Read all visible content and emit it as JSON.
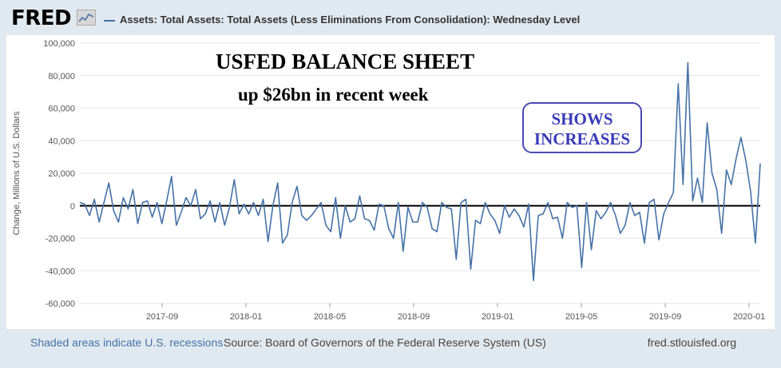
{
  "brand": {
    "logo": "FRED",
    "logo_icon": "fred-graph-icon"
  },
  "header": {
    "series_title": "Assets: Total Assets: Total Assets (Less Eliminations From Consolidation): Wednesday Level"
  },
  "annotations": {
    "title": "USFED BALANCE SHEET",
    "subtitle": "up $26bn in recent week",
    "box_line1": "SHOWS",
    "box_line2": "INCREASES"
  },
  "footer": {
    "recessions": "Shaded areas indicate U.S. recessions",
    "source": "Source: Board of Governors of the Federal Reserve System (US)",
    "site": "fred.stlouisfed.org"
  },
  "chart_data": {
    "type": "line",
    "ylabel": "Change, Millions of U.S. Dollars",
    "ylim": [
      -60000,
      100000
    ],
    "yticks": [
      -60000,
      -40000,
      -20000,
      0,
      20000,
      40000,
      60000,
      80000,
      100000
    ],
    "ytick_labels": [
      "-60,000",
      "-40,000",
      "-20,000",
      "0",
      "20,000",
      "40,000",
      "60,000",
      "80,000",
      "100,000"
    ],
    "xtick_labels": [
      "2017-09",
      "2018-01",
      "2018-05",
      "2018-09",
      "2019-01",
      "2019-05",
      "2019-09",
      "2020-01"
    ],
    "line_color": "#4572a7",
    "zero_line": true,
    "grid": true,
    "series": [
      {
        "values": [
          2000,
          1000,
          -6000,
          4000,
          -10000,
          2000,
          14000,
          -3000,
          -10000,
          5000,
          -2000,
          10000,
          -11000,
          2000,
          3000,
          -7000,
          2000,
          -11000,
          3000,
          18000,
          -12000,
          -4000,
          5000,
          0,
          10000,
          -8000,
          -5000,
          3000,
          -10000,
          2000,
          -12000,
          -1000,
          16000,
          -5000,
          1000,
          -5000,
          2000,
          -6000,
          4000,
          -22000,
          0,
          14000,
          -23000,
          -18000,
          2000,
          12000,
          -6000,
          -9000,
          -6000,
          -2000,
          2000,
          -12000,
          -16000,
          5000,
          -20000,
          0,
          -10000,
          -8000,
          6000,
          -8000,
          -9000,
          -15000,
          1000,
          0,
          -14000,
          -20000,
          2000,
          -28000,
          -1000,
          -10000,
          -10000,
          2000,
          -1000,
          -14000,
          -16000,
          2000,
          -1000,
          -2000,
          -33000,
          2000,
          4000,
          -39000,
          -9000,
          -11000,
          2000,
          -5000,
          -9000,
          -17000,
          0,
          -7000,
          -2000,
          -6000,
          -13000,
          1000,
          -46000,
          -6000,
          -5000,
          2000,
          -8000,
          -7000,
          -20000,
          2000,
          -1000,
          0,
          -38000,
          2000,
          -27000,
          -3000,
          -8000,
          -4000,
          2000,
          -6000,
          -17000,
          -12000,
          2000,
          -6000,
          -4000,
          -23000,
          2000,
          4000,
          -21000,
          -5000,
          2000,
          8000,
          75000,
          13000,
          88000,
          3000,
          17000,
          2000,
          51000,
          20000,
          10000,
          -17000,
          22000,
          13000,
          29000,
          42000,
          28000,
          9000,
          -23000,
          26000
        ]
      }
    ]
  }
}
